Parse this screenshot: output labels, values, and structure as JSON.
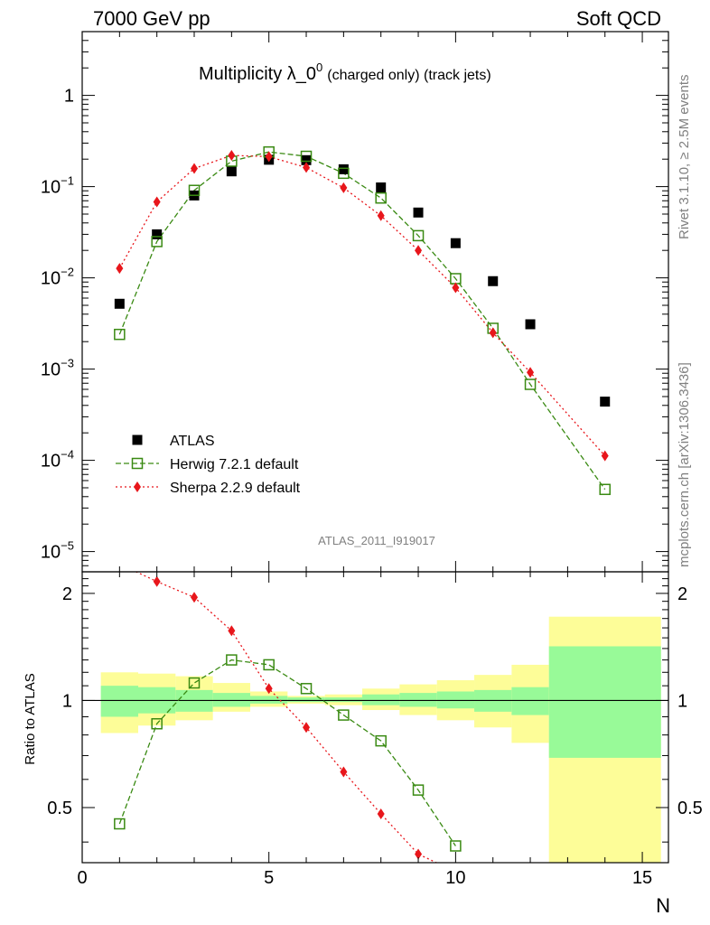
{
  "header": {
    "left": "7000 GeV pp",
    "right": "Soft QCD"
  },
  "side_text": {
    "rivet": "Rivet 3.1.10, ≥ 2.5M events",
    "mcplots": "mcplots.cern.ch [arXiv:1306.3436]"
  },
  "chart_data": {
    "type": "scatter",
    "title": {
      "main": "Multiplicity λ_0",
      "superscript": "0",
      "suffix": "(charged only) (track jets)"
    },
    "analysis_id": "ATLAS_2011_I919017",
    "xlabel": "N",
    "ylabel_ratio": "Ratio to ATLAS",
    "xlim": [
      0,
      15.7
    ],
    "main_ylim": [
      6e-06,
      5
    ],
    "main_yscale": "log",
    "ratio_ylim": [
      0.35,
      2.3
    ],
    "xticks": [
      "0",
      "5",
      "10",
      "15"
    ],
    "main_yticks": [
      {
        "value": 1,
        "base": "1",
        "exp": ""
      },
      {
        "value": 0.1,
        "base": "10",
        "exp": "−1"
      },
      {
        "value": 0.01,
        "base": "10",
        "exp": "−2"
      },
      {
        "value": 0.001,
        "base": "10",
        "exp": "−3"
      },
      {
        "value": 0.0001,
        "base": "10",
        "exp": "−4"
      },
      {
        "value": 1e-05,
        "base": "10",
        "exp": "−5"
      }
    ],
    "ratio_yticks": [
      {
        "value": 2,
        "label": "2"
      },
      {
        "value": 1,
        "label": "1"
      },
      {
        "value": 0.5,
        "label": "0.5"
      }
    ],
    "legend_position": "bottom-left",
    "series": [
      {
        "name": "ATLAS",
        "color": "#000000",
        "marker": "filled-square",
        "x": [
          1,
          2,
          3,
          4,
          5,
          6,
          7,
          8,
          9,
          10,
          11,
          12,
          14
        ],
        "y": [
          0.0052,
          0.03,
          0.08,
          0.147,
          0.197,
          0.195,
          0.155,
          0.098,
          0.052,
          0.024,
          0.0092,
          0.0031,
          0.00044
        ]
      },
      {
        "name": "Herwig 7.2.1 default",
        "color": "#3a8a13",
        "marker": "open-square",
        "line": "dashed",
        "x": [
          1,
          2,
          3,
          4,
          5,
          6,
          7,
          8,
          9,
          10,
          11,
          12,
          14
        ],
        "y": [
          0.0024,
          0.025,
          0.091,
          0.19,
          0.24,
          0.215,
          0.14,
          0.075,
          0.029,
          0.0098,
          0.0028,
          0.00068,
          4.8e-05
        ]
      },
      {
        "name": "Sherpa 2.2.9 default",
        "color": "#e8161b",
        "marker": "filled-diamond",
        "line": "dotted",
        "x": [
          1,
          2,
          3,
          4,
          5,
          6,
          7,
          8,
          9,
          10,
          11,
          12,
          14
        ],
        "y": [
          0.0127,
          0.068,
          0.158,
          0.22,
          0.213,
          0.162,
          0.097,
          0.048,
          0.02,
          0.0078,
          0.0025,
          0.00092,
          0.000112
        ]
      }
    ],
    "ratio_series": [
      {
        "name": "Herwig 7.2.1 default",
        "x": [
          1,
          2,
          3,
          4,
          5,
          6,
          7,
          8,
          9,
          10
        ],
        "y": [
          0.45,
          0.86,
          1.12,
          1.3,
          1.26,
          1.08,
          0.91,
          0.77,
          0.56,
          0.39
        ]
      },
      {
        "name": "Sherpa 2.2.9 default",
        "x": [
          1,
          2,
          3,
          4,
          5,
          6,
          7,
          8,
          9,
          10
        ],
        "y": [
          2.42,
          2.16,
          1.95,
          1.57,
          1.08,
          0.84,
          0.63,
          0.48,
          0.37,
          0.33
        ]
      }
    ],
    "uncertainty_bands": [
      {
        "xmin": 0.5,
        "xmax": 1.5,
        "stat_lo": 0.9,
        "stat_hi": 1.1,
        "tot_lo": 0.81,
        "tot_hi": 1.2
      },
      {
        "xmin": 1.5,
        "xmax": 2.5,
        "stat_lo": 0.92,
        "stat_hi": 1.09,
        "tot_lo": 0.85,
        "tot_hi": 1.19
      },
      {
        "xmin": 2.5,
        "xmax": 3.5,
        "stat_lo": 0.93,
        "stat_hi": 1.07,
        "tot_lo": 0.88,
        "tot_hi": 1.17
      },
      {
        "xmin": 3.5,
        "xmax": 4.5,
        "stat_lo": 0.96,
        "stat_hi": 1.05,
        "tot_lo": 0.93,
        "tot_hi": 1.12
      },
      {
        "xmin": 4.5,
        "xmax": 5.5,
        "stat_lo": 0.98,
        "stat_hi": 1.03,
        "tot_lo": 0.96,
        "tot_hi": 1.06
      },
      {
        "xmin": 5.5,
        "xmax": 6.5,
        "stat_lo": 0.99,
        "stat_hi": 1.02,
        "tot_lo": 0.98,
        "tot_hi": 1.03
      },
      {
        "xmin": 6.5,
        "xmax": 7.5,
        "stat_lo": 0.99,
        "stat_hi": 1.02,
        "tot_lo": 0.97,
        "tot_hi": 1.04
      },
      {
        "xmin": 7.5,
        "xmax": 8.5,
        "stat_lo": 0.97,
        "stat_hi": 1.04,
        "tot_lo": 0.94,
        "tot_hi": 1.08
      },
      {
        "xmin": 8.5,
        "xmax": 9.5,
        "stat_lo": 0.96,
        "stat_hi": 1.05,
        "tot_lo": 0.91,
        "tot_hi": 1.11
      },
      {
        "xmin": 9.5,
        "xmax": 10.5,
        "stat_lo": 0.95,
        "stat_hi": 1.06,
        "tot_lo": 0.88,
        "tot_hi": 1.14
      },
      {
        "xmin": 10.5,
        "xmax": 11.5,
        "stat_lo": 0.93,
        "stat_hi": 1.07,
        "tot_lo": 0.84,
        "tot_hi": 1.18
      },
      {
        "xmin": 11.5,
        "xmax": 12.5,
        "stat_lo": 0.91,
        "stat_hi": 1.09,
        "tot_lo": 0.76,
        "tot_hi": 1.26
      },
      {
        "xmin": 12.5,
        "xmax": 15.5,
        "stat_lo": 0.69,
        "stat_hi": 1.42,
        "tot_lo": 0.3,
        "tot_hi": 1.72
      }
    ],
    "band_colors": {
      "stat": "#98fa98",
      "total": "#fdfd98"
    }
  }
}
